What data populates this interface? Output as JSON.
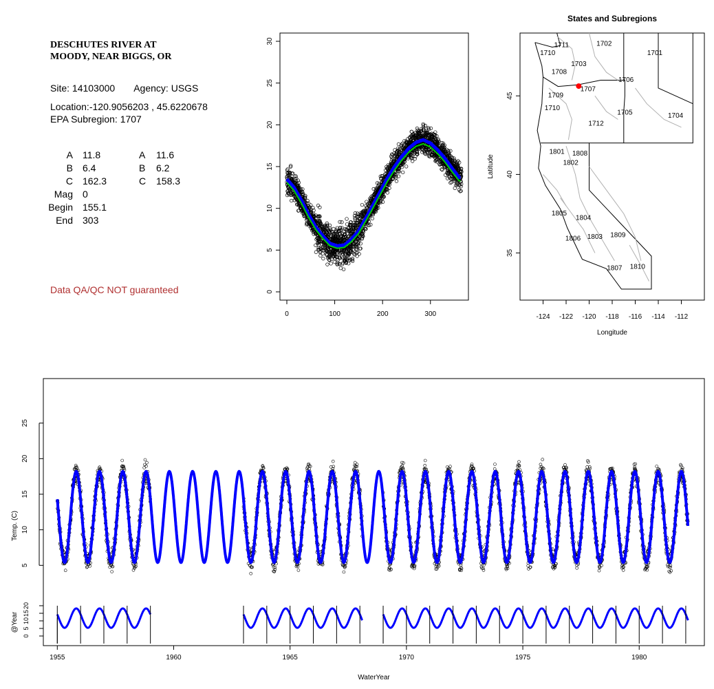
{
  "site": {
    "title_line1": "DESCHUTES RIVER AT",
    "title_line2": "MOODY, NEAR BIGGS, OR",
    "site_label": "Site:",
    "site_id": "14103000",
    "agency_label": "Agency:",
    "agency": "USGS",
    "location_label": "Location:",
    "location": "-120.9056203 , 45.6220678",
    "subregion_label": "EPA Subregion:",
    "subregion": "1707",
    "qa_note": "Data QA/QC NOT guaranteed"
  },
  "params": {
    "labels": [
      "A",
      "B",
      "C",
      "Mag",
      "Begin",
      "End"
    ],
    "col1": [
      "11.8",
      "6.4",
      "162.3",
      "0",
      "155.1",
      "303"
    ],
    "labels2": [
      "A",
      "B",
      "C"
    ],
    "col2": [
      "11.6",
      "6.2",
      "158.3"
    ]
  },
  "colors": {
    "fit_blue": "#0000ff",
    "fit_green": "#00cc00",
    "points": "#000000",
    "site_marker": "#ff0000",
    "boundary": "#b0b0b0",
    "qa": "#b03030"
  },
  "chart_data": [
    {
      "id": "seasonal",
      "type": "scatter",
      "title": "",
      "xlabel": "",
      "ylabel": "",
      "xlim": [
        0,
        365
      ],
      "ylim": [
        0,
        30
      ],
      "x_ticks": [
        0,
        100,
        200,
        300
      ],
      "y_ticks": [
        0,
        5,
        10,
        15,
        20,
        25,
        30
      ],
      "fit_params": {
        "A": 11.8,
        "B": 6.4,
        "C": 162.3
      },
      "series": [
        {
          "name": "",
          "kind": "points",
          "x": [
            0,
            15,
            30,
            45,
            60,
            75,
            90,
            105,
            120,
            135,
            150,
            165,
            180,
            195,
            210,
            225,
            240,
            255,
            270,
            285,
            300,
            315,
            330,
            345,
            360
          ],
          "y": [
            13.5,
            12.5,
            11,
            9.3,
            7.8,
            6.7,
            5.8,
            5.5,
            5.6,
            6.3,
            7.3,
            8.8,
            10.4,
            12,
            13.6,
            15,
            16.2,
            17.2,
            17.9,
            18.2,
            17.8,
            17,
            16,
            14.8,
            13.7
          ]
        },
        {
          "name": "",
          "kind": "fit",
          "color": "#0000ff"
        },
        {
          "name": "",
          "kind": "fit",
          "color": "#00cc00"
        }
      ]
    },
    {
      "id": "map",
      "type": "scatter",
      "title": "States and Subregions",
      "xlabel": "Longitude",
      "ylabel": "Latitude",
      "xlim": [
        -126,
        -110
      ],
      "ylim": [
        32,
        49
      ],
      "x_ticks": [
        -124,
        -122,
        -120,
        -118,
        -116,
        -114,
        -112
      ],
      "y_ticks": [
        35,
        40,
        45
      ],
      "subregions": [
        {
          "label": "1711",
          "lon": -122.4,
          "lat": 48.1
        },
        {
          "label": "1702",
          "lon": -118.7,
          "lat": 48.2
        },
        {
          "label": "1710",
          "lon": -123.6,
          "lat": 47.6
        },
        {
          "label": "1701",
          "lon": -114.3,
          "lat": 47.6
        },
        {
          "label": "1703",
          "lon": -120.9,
          "lat": 46.9
        },
        {
          "label": "1708",
          "lon": -122.6,
          "lat": 46.4
        },
        {
          "label": "1706",
          "lon": -116.8,
          "lat": 45.9
        },
        {
          "label": "1707",
          "lon": -120.1,
          "lat": 45.3
        },
        {
          "label": "1709",
          "lon": -122.9,
          "lat": 44.9
        },
        {
          "label": "1710",
          "lon": -123.2,
          "lat": 44.1
        },
        {
          "label": "1705",
          "lon": -116.9,
          "lat": 43.8
        },
        {
          "label": "1704",
          "lon": -112.5,
          "lat": 43.6
        },
        {
          "label": "1712",
          "lon": -119.4,
          "lat": 43.1
        },
        {
          "label": "1801",
          "lon": -122.8,
          "lat": 41.3
        },
        {
          "label": "1808",
          "lon": -120.8,
          "lat": 41.2
        },
        {
          "label": "1802",
          "lon": -121.6,
          "lat": 40.6
        },
        {
          "label": "1805",
          "lon": -122.6,
          "lat": 37.4
        },
        {
          "label": "1804",
          "lon": -120.5,
          "lat": 37.1
        },
        {
          "label": "1806",
          "lon": -121.4,
          "lat": 35.8
        },
        {
          "label": "1803",
          "lon": -119.5,
          "lat": 35.9
        },
        {
          "label": "1809",
          "lon": -117.5,
          "lat": 36.0
        },
        {
          "label": "1810",
          "lon": -115.8,
          "lat": 34.0
        },
        {
          "label": "1807",
          "lon": -117.8,
          "lat": 33.9
        }
      ],
      "site_marker": {
        "lon": -120.9056203,
        "lat": 45.6220678
      }
    },
    {
      "id": "timeseries",
      "type": "line",
      "title": "",
      "xlabel": "WaterYear",
      "ylabel": "Temp. (C)",
      "ylabel2": "@Year",
      "xlim": [
        1954.4,
        1982.8
      ],
      "ylim": [
        0,
        30
      ],
      "ylim2": [
        -5,
        25
      ],
      "x_ticks": [
        1955,
        1960,
        1965,
        1970,
        1975,
        1980
      ],
      "y_ticks": [
        5,
        10,
        15,
        20,
        25
      ],
      "y_ticks2": [
        0,
        5,
        10,
        15,
        20
      ],
      "series": [
        {
          "name": "",
          "kind": "observed",
          "segments": [
            [
              1955.0,
              1959.0
            ],
            [
              1963.0,
              1968.1
            ],
            [
              1969.0,
              1982.1
            ]
          ]
        },
        {
          "name": "",
          "kind": "fit",
          "range": [
            1955.0,
            1982.1
          ],
          "mean": 11.8,
          "amplitude": 6.4,
          "peak_day": 297
        },
        {
          "name": "",
          "kind": "annual",
          "segments": [
            [
              1955.0,
              1959.0
            ],
            [
              1963.0,
              1968.1
            ],
            [
              1969.0,
              1982.1
            ]
          ]
        }
      ]
    }
  ]
}
